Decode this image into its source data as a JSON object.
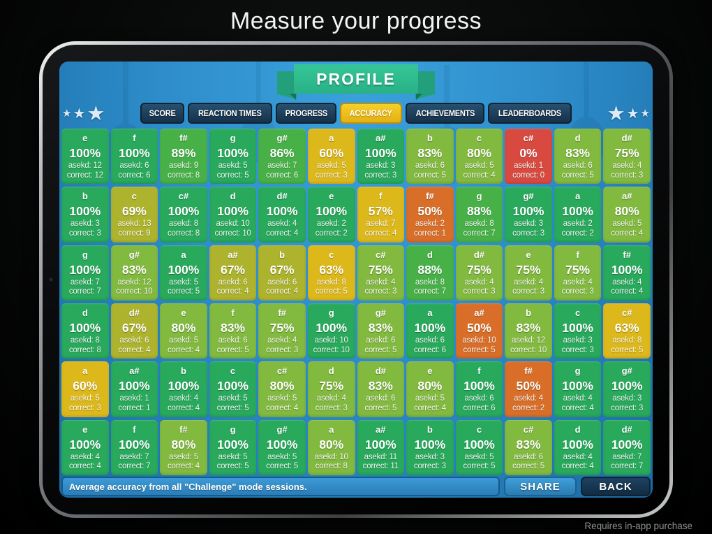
{
  "page": {
    "title": "Measure your progress",
    "iap_note": "Requires in-app purchase"
  },
  "screen": {
    "banner": "PROFILE",
    "tabs": [
      {
        "label": "SCORE",
        "active": false
      },
      {
        "label": "REACTION TIMES",
        "active": false
      },
      {
        "label": "PROGRESS",
        "active": false
      },
      {
        "label": "ACCURACY",
        "active": true
      },
      {
        "label": "ACHIEVEMENTS",
        "active": false
      },
      {
        "label": "LEADERBOARDS",
        "active": false
      }
    ],
    "status_bar": "Average accuracy from all \"Challenge\" mode sessions.",
    "share_label": "SHARE",
    "back_label": "BACK"
  },
  "icons": {
    "star": "★"
  },
  "colors": {
    "screen_blue": "#2e8ecb",
    "ribbon_teal": "#2cbb8e",
    "tab_inactive": "#1b3c58",
    "tab_active_gold": "#eec01e",
    "scale": [
      {
        "min": 100,
        "color": "#28a95c"
      },
      {
        "min": 85,
        "color": "#47b148"
      },
      {
        "min": 75,
        "color": "#82b93f"
      },
      {
        "min": 65,
        "color": "#adb32c"
      },
      {
        "min": 55,
        "color": "#ddb81b"
      },
      {
        "min": 30,
        "color": "#d96e28"
      },
      {
        "min": 0,
        "color": "#d84a40"
      }
    ]
  },
  "grid": {
    "asked_label": "asekd: ",
    "correct_label": "correct: ",
    "rows": [
      [
        {
          "note": "e",
          "pct": 100,
          "asked": 12,
          "correct": 12
        },
        {
          "note": "f",
          "pct": 100,
          "asked": 6,
          "correct": 6
        },
        {
          "note": "f#",
          "pct": 89,
          "asked": 9,
          "correct": 8
        },
        {
          "note": "g",
          "pct": 100,
          "asked": 5,
          "correct": 5
        },
        {
          "note": "g#",
          "pct": 86,
          "asked": 7,
          "correct": 6
        },
        {
          "note": "a",
          "pct": 60,
          "asked": 5,
          "correct": 3
        },
        {
          "note": "a#",
          "pct": 100,
          "asked": 3,
          "correct": 3
        },
        {
          "note": "b",
          "pct": 83,
          "asked": 6,
          "correct": 5
        },
        {
          "note": "c",
          "pct": 80,
          "asked": 5,
          "correct": 4
        },
        {
          "note": "c#",
          "pct": 0,
          "asked": 1,
          "correct": 0
        },
        {
          "note": "d",
          "pct": 83,
          "asked": 6,
          "correct": 5
        },
        {
          "note": "d#",
          "pct": 75,
          "asked": 4,
          "correct": 3
        }
      ],
      [
        {
          "note": "b",
          "pct": 100,
          "asked": 3,
          "correct": 3
        },
        {
          "note": "c",
          "pct": 69,
          "asked": 13,
          "correct": 9
        },
        {
          "note": "c#",
          "pct": 100,
          "asked": 8,
          "correct": 8
        },
        {
          "note": "d",
          "pct": 100,
          "asked": 10,
          "correct": 10
        },
        {
          "note": "d#",
          "pct": 100,
          "asked": 4,
          "correct": 4
        },
        {
          "note": "e",
          "pct": 100,
          "asked": 2,
          "correct": 2
        },
        {
          "note": "f",
          "pct": 57,
          "asked": 7,
          "correct": 4
        },
        {
          "note": "f#",
          "pct": 50,
          "asked": 2,
          "correct": 1
        },
        {
          "note": "g",
          "pct": 88,
          "asked": 8,
          "correct": 7
        },
        {
          "note": "g#",
          "pct": 100,
          "asked": 3,
          "correct": 3
        },
        {
          "note": "a",
          "pct": 100,
          "asked": 2,
          "correct": 2
        },
        {
          "note": "a#",
          "pct": 80,
          "asked": 5,
          "correct": 4
        }
      ],
      [
        {
          "note": "g",
          "pct": 100,
          "asked": 7,
          "correct": 7
        },
        {
          "note": "g#",
          "pct": 83,
          "asked": 12,
          "correct": 10
        },
        {
          "note": "a",
          "pct": 100,
          "asked": 5,
          "correct": 5
        },
        {
          "note": "a#",
          "pct": 67,
          "asked": 6,
          "correct": 4
        },
        {
          "note": "b",
          "pct": 67,
          "asked": 6,
          "correct": 4
        },
        {
          "note": "c",
          "pct": 63,
          "asked": 8,
          "correct": 5
        },
        {
          "note": "c#",
          "pct": 75,
          "asked": 4,
          "correct": 3
        },
        {
          "note": "d",
          "pct": 88,
          "asked": 8,
          "correct": 7
        },
        {
          "note": "d#",
          "pct": 75,
          "asked": 4,
          "correct": 3
        },
        {
          "note": "e",
          "pct": 75,
          "asked": 4,
          "correct": 3
        },
        {
          "note": "f",
          "pct": 75,
          "asked": 4,
          "correct": 3
        },
        {
          "note": "f#",
          "pct": 100,
          "asked": 4,
          "correct": 4
        }
      ],
      [
        {
          "note": "d",
          "pct": 100,
          "asked": 8,
          "correct": 8
        },
        {
          "note": "d#",
          "pct": 67,
          "asked": 6,
          "correct": 4
        },
        {
          "note": "e",
          "pct": 80,
          "asked": 5,
          "correct": 4
        },
        {
          "note": "f",
          "pct": 83,
          "asked": 6,
          "correct": 5
        },
        {
          "note": "f#",
          "pct": 75,
          "asked": 4,
          "correct": 3
        },
        {
          "note": "g",
          "pct": 100,
          "asked": 10,
          "correct": 10
        },
        {
          "note": "g#",
          "pct": 83,
          "asked": 6,
          "correct": 5
        },
        {
          "note": "a",
          "pct": 100,
          "asked": 6,
          "correct": 6
        },
        {
          "note": "a#",
          "pct": 50,
          "asked": 10,
          "correct": 5
        },
        {
          "note": "b",
          "pct": 83,
          "asked": 12,
          "correct": 10
        },
        {
          "note": "c",
          "pct": 100,
          "asked": 3,
          "correct": 3
        },
        {
          "note": "c#",
          "pct": 63,
          "asked": 8,
          "correct": 5
        }
      ],
      [
        {
          "note": "a",
          "pct": 60,
          "asked": 5,
          "correct": 3
        },
        {
          "note": "a#",
          "pct": 100,
          "asked": 1,
          "correct": 1
        },
        {
          "note": "b",
          "pct": 100,
          "asked": 4,
          "correct": 4
        },
        {
          "note": "c",
          "pct": 100,
          "asked": 5,
          "correct": 5
        },
        {
          "note": "c#",
          "pct": 80,
          "asked": 5,
          "correct": 4
        },
        {
          "note": "d",
          "pct": 75,
          "asked": 4,
          "correct": 3
        },
        {
          "note": "d#",
          "pct": 83,
          "asked": 6,
          "correct": 5
        },
        {
          "note": "e",
          "pct": 80,
          "asked": 5,
          "correct": 4
        },
        {
          "note": "f",
          "pct": 100,
          "asked": 6,
          "correct": 6
        },
        {
          "note": "f#",
          "pct": 50,
          "asked": 4,
          "correct": 2
        },
        {
          "note": "g",
          "pct": 100,
          "asked": 4,
          "correct": 4
        },
        {
          "note": "g#",
          "pct": 100,
          "asked": 3,
          "correct": 3
        }
      ],
      [
        {
          "note": "e",
          "pct": 100,
          "asked": 4,
          "correct": 4
        },
        {
          "note": "f",
          "pct": 100,
          "asked": 7,
          "correct": 7
        },
        {
          "note": "f#",
          "pct": 80,
          "asked": 5,
          "correct": 4
        },
        {
          "note": "g",
          "pct": 100,
          "asked": 5,
          "correct": 5
        },
        {
          "note": "g#",
          "pct": 100,
          "asked": 5,
          "correct": 5
        },
        {
          "note": "a",
          "pct": 80,
          "asked": 10,
          "correct": 8
        },
        {
          "note": "a#",
          "pct": 100,
          "asked": 11,
          "correct": 11
        },
        {
          "note": "b",
          "pct": 100,
          "asked": 3,
          "correct": 3
        },
        {
          "note": "c",
          "pct": 100,
          "asked": 5,
          "correct": 5
        },
        {
          "note": "c#",
          "pct": 83,
          "asked": 6,
          "correct": 5
        },
        {
          "note": "d",
          "pct": 100,
          "asked": 4,
          "correct": 4
        },
        {
          "note": "d#",
          "pct": 100,
          "asked": 7,
          "correct": 7
        }
      ]
    ]
  }
}
